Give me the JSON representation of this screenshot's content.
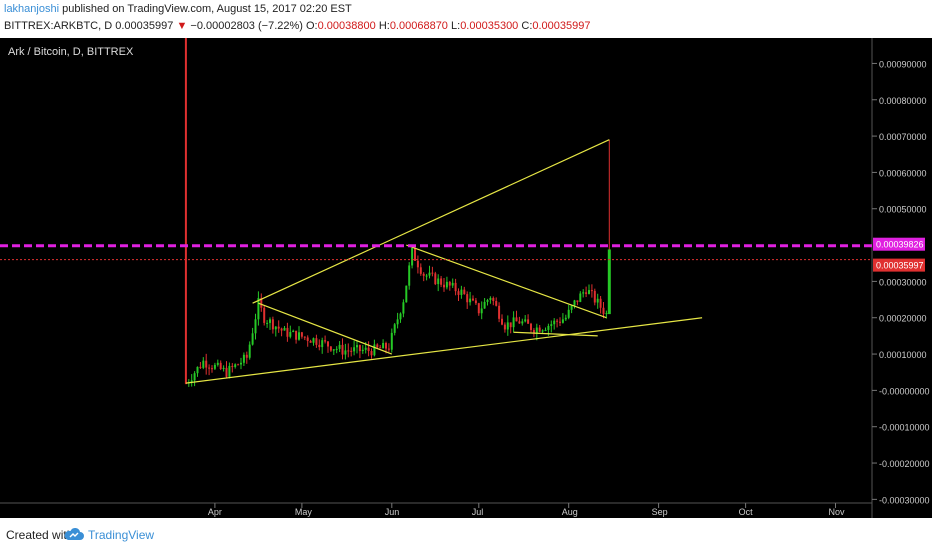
{
  "header": {
    "author": "lakhanjoshi",
    "published_text": "published on TradingView.com, August 15, 2017 02:20 EST",
    "symbol": "BITTREX:ARKBTC, D",
    "last_price": "0.00035997",
    "change_arrow": "▼",
    "change": "−0.00002803 (−7.22%)",
    "o_label": "O:",
    "o_value": "0.00038800",
    "h_label": "H:",
    "h_value": "0.00068870",
    "l_label": "L:",
    "l_value": "0.00035300",
    "c_label": "C:",
    "c_value": "0.00035997"
  },
  "footer": {
    "created_with": "Created with",
    "brand": "TradingView",
    "logo_icon": "tradingview-cloud-logo-icon"
  },
  "colors": {
    "background": "#000000",
    "up": "#26c926",
    "down": "#e03030",
    "trendline": "#e6e645",
    "level_line": "#e020e0",
    "price_line": "#e03030",
    "axis_text": "#cccccc"
  },
  "chart_data": {
    "type": "candlestick",
    "title": "Ark / Bitcoin, D, BITTREX",
    "y_ticks": [
      "0.00090000",
      "0.00080000",
      "0.00070000",
      "0.00060000",
      "0.00050000",
      "0.00030000",
      "0.00020000",
      "0.00010000",
      "-0.00000000",
      "-0.00010000",
      "-0.00020000",
      "-0.00030000"
    ],
    "x_ticks": [
      "Apr",
      "May",
      "Jun",
      "Jul",
      "Aug",
      "Sep",
      "Oct",
      "Nov"
    ],
    "ylim": [
      -0.00031,
      0.00097
    ],
    "level_labels": [
      {
        "value": 0.00039826,
        "label": "0.00039826",
        "color": "#e020e0"
      },
      {
        "value": 0.00035997,
        "label": "0.00035997",
        "color": "#e03030"
      }
    ],
    "series": [
      {
        "name": "close",
        "x": [
          "2017-03-22",
          "2017-03-28",
          "2017-04-05",
          "2017-04-12",
          "2017-04-16",
          "2017-04-18",
          "2017-04-25",
          "2017-05-05",
          "2017-05-15",
          "2017-05-25",
          "2017-05-31",
          "2017-06-05",
          "2017-06-08",
          "2017-06-12",
          "2017-06-20",
          "2017-06-25",
          "2017-07-01",
          "2017-07-05",
          "2017-07-10",
          "2017-07-15",
          "2017-07-20",
          "2017-07-25",
          "2017-07-31",
          "2017-08-03",
          "2017-08-07",
          "2017-08-10",
          "2017-08-14",
          "2017-08-15"
        ],
        "values": [
          2e-05,
          8e-05,
          5e-05,
          9e-05,
          0.00024,
          0.0002,
          0.00016,
          0.00014,
          0.00011,
          0.00011,
          0.00012,
          0.00025,
          0.00038,
          0.00032,
          0.00029,
          0.00027,
          0.00022,
          0.00026,
          0.00018,
          0.00019,
          0.00017,
          0.00018,
          0.0002,
          0.00024,
          0.00028,
          0.00025,
          0.00021,
          0.00036
        ]
      }
    ],
    "trendlines": [
      {
        "name": "upper rising",
        "from": [
          "2017-04-14",
          0.00024
        ],
        "to": [
          "2017-08-15",
          0.00069
        ]
      },
      {
        "name": "lower support",
        "from": [
          "2017-03-22",
          2e-05
        ],
        "to": [
          "2017-09-16",
          0.0002
        ]
      },
      {
        "name": "descending 1",
        "from": [
          "2017-04-16",
          0.00024
        ],
        "to": [
          "2017-06-01",
          0.0001
        ]
      },
      {
        "name": "descending 2",
        "from": [
          "2017-06-06",
          0.0004
        ],
        "to": [
          "2017-08-14",
          0.0002
        ]
      },
      {
        "name": "flat",
        "from": [
          "2017-07-13",
          0.00016
        ],
        "to": [
          "2017-08-11",
          0.00015
        ]
      }
    ],
    "markers": [
      {
        "name": "vertical line",
        "x": "2017-03-22",
        "color": "#e03030"
      }
    ]
  }
}
